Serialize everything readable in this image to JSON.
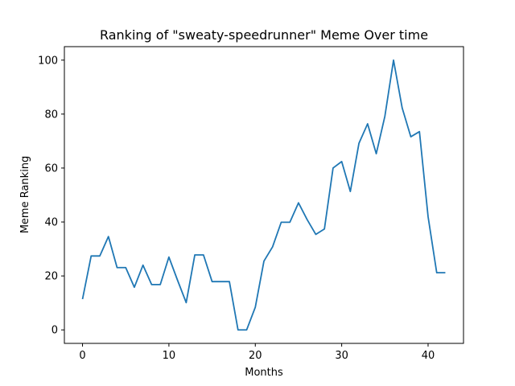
{
  "chart_data": {
    "type": "line",
    "title": "Ranking of \"sweaty-speedrunner\" Meme Over time",
    "xlabel": "Months",
    "ylabel": "Meme Ranking",
    "xlim": [
      -2.1,
      44.1
    ],
    "ylim": [
      -5,
      105
    ],
    "xticks": [
      0,
      10,
      20,
      30,
      40
    ],
    "yticks": [
      0,
      20,
      40,
      60,
      80,
      100
    ],
    "grid": false,
    "line_color": "#1f77b4",
    "series": [
      {
        "x": [
          0,
          1,
          2,
          3,
          4,
          5,
          6,
          7,
          8,
          9,
          10,
          11,
          12,
          13,
          14,
          15,
          16,
          17,
          18,
          19,
          20,
          21,
          22,
          23,
          24,
          25,
          26,
          27,
          28,
          29,
          30,
          31,
          32,
          33,
          34,
          35,
          36,
          37,
          38,
          39,
          40,
          41,
          42
        ],
        "values": [
          11.4,
          27.4,
          27.4,
          34.6,
          23.1,
          23.1,
          15.8,
          24.0,
          16.8,
          16.8,
          27.0,
          18.4,
          10.1,
          27.8,
          27.8,
          17.9,
          17.9,
          17.9,
          0,
          0,
          8.4,
          25.5,
          30.8,
          39.9,
          39.9,
          47.1,
          40.9,
          35.4,
          37.4,
          60.0,
          62.4,
          51.3,
          69.2,
          76.4,
          65.3,
          79.2,
          100,
          82.3,
          71.6,
          73.5,
          42.0,
          21.2,
          21.2
        ]
      }
    ]
  }
}
